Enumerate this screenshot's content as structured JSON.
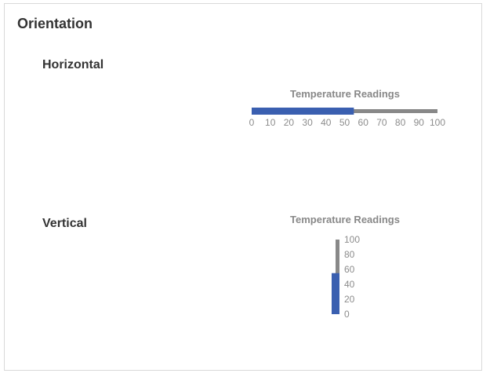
{
  "card": {
    "title": "Orientation"
  },
  "horizontal": {
    "label": "Horizontal",
    "gauge_title": "Temperature Readings"
  },
  "vertical": {
    "label": "Vertical",
    "gauge_title": "Temperature Readings"
  },
  "colors": {
    "fill": "#3a5fb0",
    "track": "#888888",
    "tick_text": "#8c8c8c"
  },
  "chart_data": [
    {
      "type": "bar",
      "orientation": "horizontal",
      "title": "Temperature Readings",
      "value": 55,
      "xlim": [
        0,
        100
      ],
      "ticks": [
        "0",
        "10",
        "20",
        "30",
        "40",
        "50",
        "60",
        "70",
        "80",
        "90",
        "100"
      ]
    },
    {
      "type": "bar",
      "orientation": "vertical",
      "title": "Temperature Readings",
      "value": 55,
      "ylim": [
        0,
        100
      ],
      "ticks": [
        "0",
        "20",
        "40",
        "60",
        "80",
        "100"
      ]
    }
  ]
}
